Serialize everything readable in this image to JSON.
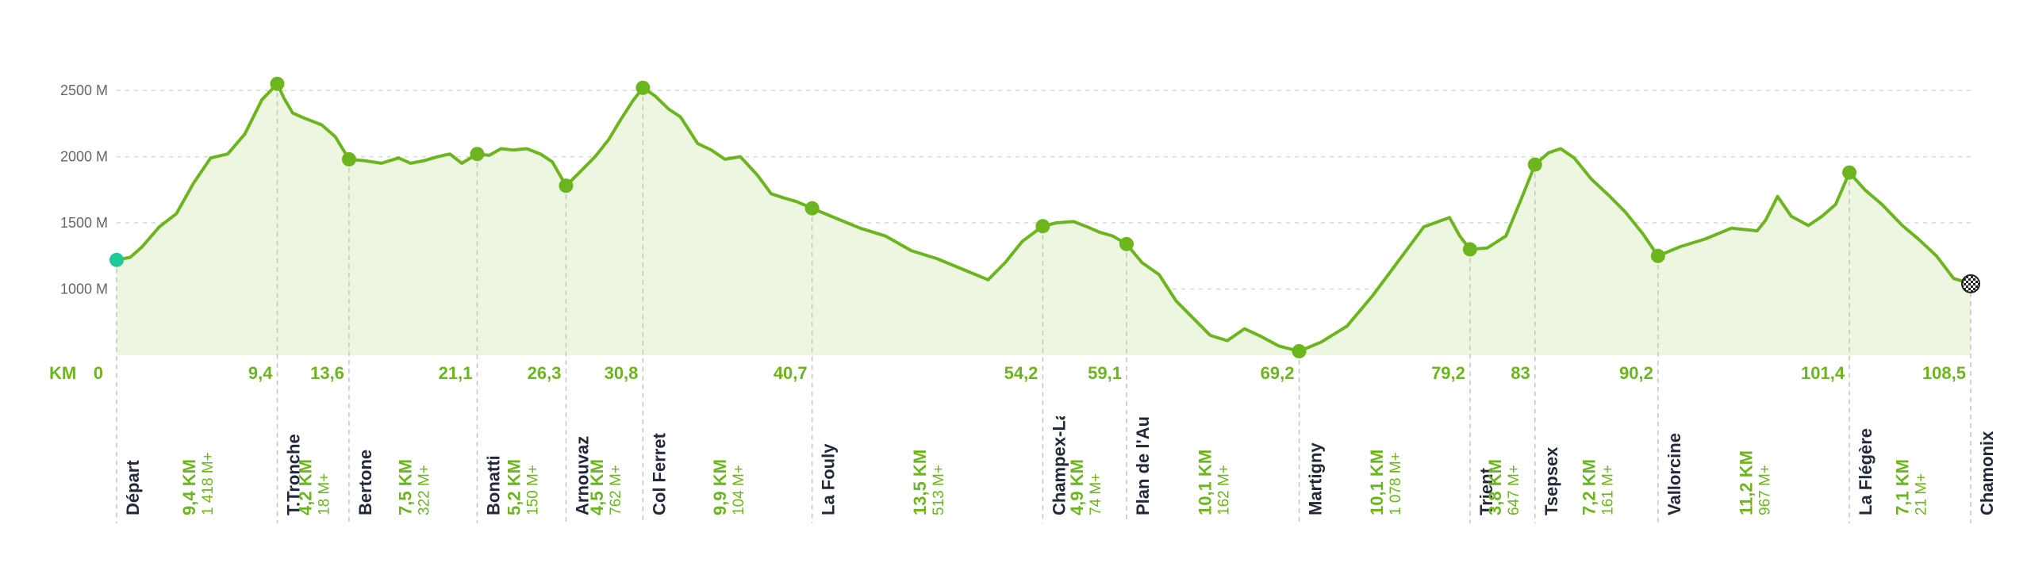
{
  "chart_data": {
    "type": "area",
    "title": "",
    "x_unit_label": "KM",
    "y_tick_labels": [
      "1000 M",
      "1500 M",
      "2000 M",
      "2500 M"
    ],
    "y_ticks": [
      1000,
      1500,
      2000,
      2500
    ],
    "xlim": [
      0,
      108.5
    ],
    "ylim": [
      500,
      2800
    ],
    "grid": true,
    "colors": {
      "line": "#6cb51f",
      "fill": "#ecf6e1",
      "start": "#1ec99a",
      "grid": "#d8d8d8",
      "dark_text": "#222a3a"
    },
    "profile": {
      "x": [
        0,
        0.8,
        1.5,
        2.5,
        3.5,
        4.5,
        5.5,
        6.5,
        7.5,
        8.5,
        9.4,
        9.8,
        10.3,
        11,
        12,
        12.8,
        13.6,
        14.5,
        15.5,
        16.5,
        17.2,
        18,
        18.8,
        19.5,
        20.2,
        21.1,
        21.8,
        22.5,
        23.2,
        24,
        24.8,
        25.5,
        26.3,
        27,
        28,
        28.8,
        29.5,
        30.2,
        30.8,
        31.5,
        32.3,
        33,
        34,
        34.8,
        35.6,
        36.5,
        37.5,
        38.3,
        39,
        39.8,
        40.7,
        42,
        43.5,
        45,
        46.5,
        48,
        49.5,
        51,
        52,
        53,
        54.2,
        55,
        56,
        56.8,
        57.5,
        58.3,
        59.1,
        60,
        61,
        62,
        63,
        64,
        65,
        66,
        67,
        68,
        69.2,
        70.5,
        72,
        73.5,
        75,
        76.5,
        78,
        78.6,
        79.2,
        80.2,
        81.3,
        82.2,
        83,
        83.8,
        84.5,
        85.3,
        86.3,
        87.3,
        88.3,
        89.3,
        90.2,
        91.5,
        93,
        94.5,
        96,
        96.5,
        97.2,
        98,
        99,
        99.8,
        100.6,
        101.4,
        102.3,
        103.3,
        104.5,
        105.5,
        106.5,
        107.5,
        108.5
      ],
      "y": [
        1220,
        1240,
        1320,
        1470,
        1570,
        1800,
        1990,
        2020,
        2170,
        2430,
        2550,
        2440,
        2330,
        2290,
        2240,
        2150,
        1980,
        1970,
        1950,
        1990,
        1950,
        1970,
        2000,
        2020,
        1950,
        2020,
        2010,
        2060,
        2050,
        2060,
        2020,
        1960,
        1780,
        1870,
        2000,
        2130,
        2280,
        2420,
        2520,
        2460,
        2360,
        2300,
        2100,
        2050,
        1980,
        2000,
        1860,
        1720,
        1690,
        1660,
        1610,
        1540,
        1460,
        1400,
        1290,
        1230,
        1150,
        1070,
        1200,
        1360,
        1475,
        1500,
        1510,
        1470,
        1430,
        1400,
        1340,
        1200,
        1110,
        910,
        780,
        650,
        610,
        700,
        640,
        570,
        530,
        600,
        720,
        950,
        1210,
        1470,
        1540,
        1400,
        1300,
        1310,
        1400,
        1680,
        1940,
        2030,
        2060,
        1990,
        1830,
        1710,
        1580,
        1420,
        1250,
        1320,
        1380,
        1460,
        1440,
        1520,
        1700,
        1550,
        1480,
        1550,
        1640,
        1880,
        1750,
        1640,
        1480,
        1370,
        1250,
        1080,
        1040
      ]
    },
    "checkpoints": [
      {
        "name": "Départ",
        "km": 0,
        "km_label": "0",
        "alt": 1220
      },
      {
        "name": "T.Tronche",
        "km": 9.4,
        "km_label": "9,4",
        "alt": 2550
      },
      {
        "name": "Bertone",
        "km": 13.6,
        "km_label": "13,6",
        "alt": 1980
      },
      {
        "name": "Bonatti",
        "km": 21.1,
        "km_label": "21,1",
        "alt": 2020
      },
      {
        "name": "Arnouvaz",
        "km": 26.3,
        "km_label": "26,3",
        "alt": 1780
      },
      {
        "name": "Col Ferret",
        "km": 30.8,
        "km_label": "30,8",
        "alt": 2520
      },
      {
        "name": "La Fouly",
        "km": 40.7,
        "km_label": "40,7",
        "alt": 1610
      },
      {
        "name": "Champex-Lac",
        "km": 54.2,
        "km_label": "54,2",
        "alt": 1475
      },
      {
        "name": "Plan de l'Au",
        "km": 59.1,
        "km_label": "59,1",
        "alt": 1340
      },
      {
        "name": "Martigny",
        "km": 69.2,
        "km_label": "69,2",
        "alt": 530
      },
      {
        "name": "Trient",
        "km": 79.2,
        "km_label": "79,2",
        "alt": 1300
      },
      {
        "name": "Tsepsex",
        "km": 83,
        "km_label": "83",
        "alt": 1940
      },
      {
        "name": "Vallorcine",
        "km": 90.2,
        "km_label": "90,2",
        "alt": 1250
      },
      {
        "name": "La Flégère",
        "km": 101.4,
        "km_label": "101,4",
        "alt": 1880
      },
      {
        "name": "Chamonix",
        "km": 108.5,
        "km_label": "108,5",
        "alt": 1040
      }
    ],
    "segments": [
      {
        "distance": "9,4 KM",
        "gain": "1 418 M+"
      },
      {
        "distance": "4,2 KM",
        "gain": "18 M+"
      },
      {
        "distance": "7,5 KM",
        "gain": "322 M+"
      },
      {
        "distance": "5,2 KM",
        "gain": "150 M+"
      },
      {
        "distance": "4,5 KM",
        "gain": "762 M+"
      },
      {
        "distance": "9,9 KM",
        "gain": "104 M+"
      },
      {
        "distance": "13,5 KM",
        "gain": "513 M+"
      },
      {
        "distance": "4,9 KM",
        "gain": "74 M+"
      },
      {
        "distance": "10,1 KM",
        "gain": "162 M+"
      },
      {
        "distance": "10,1 KM",
        "gain": "1 078 M+"
      },
      {
        "distance": "3,8 KM",
        "gain": "647 M+"
      },
      {
        "distance": "7,2 KM",
        "gain": "161 M+"
      },
      {
        "distance": "11,2 KM",
        "gain": "967 M+"
      },
      {
        "distance": "7,1 KM",
        "gain": "21 M+"
      }
    ]
  }
}
